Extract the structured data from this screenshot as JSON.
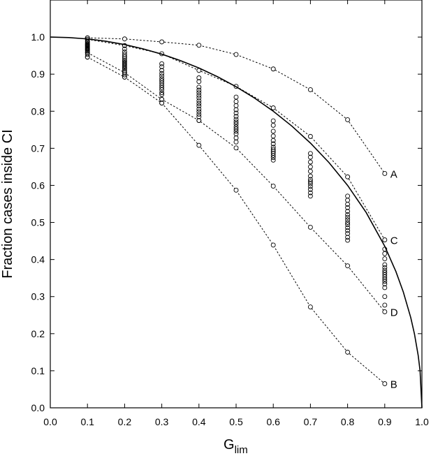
{
  "chart_data": {
    "type": "scatter",
    "xlabel": "G",
    "xlabel_subscript": "lim",
    "ylabel": "Fraction cases inside CI",
    "xlim": [
      0.0,
      1.0
    ],
    "ylim": [
      0.0,
      1.1
    ],
    "x_ticks": [
      0.0,
      0.1,
      0.2,
      0.3,
      0.4,
      0.5,
      0.6,
      0.7,
      0.8,
      0.9,
      1.0
    ],
    "x_tick_labels": [
      "0.0",
      "0.1",
      "0.2",
      "0.3",
      "0.4",
      "0.5",
      "0.6",
      "0.7",
      "0.8",
      "0.9",
      "1.0"
    ],
    "y_ticks": [
      0.0,
      0.1,
      0.2,
      0.3,
      0.4,
      0.5,
      0.6,
      0.7,
      0.8,
      0.9,
      1.0
    ],
    "y_tick_labels": [
      "0.0",
      "0.1",
      "0.2",
      "0.3",
      "0.4",
      "0.5",
      "0.6",
      "0.7",
      "0.8",
      "0.9",
      "1.0"
    ],
    "grid": false,
    "reference_curve": {
      "style": "solid",
      "x": [
        0.0,
        0.05,
        0.1,
        0.15,
        0.2,
        0.25,
        0.3,
        0.35,
        0.4,
        0.45,
        0.5,
        0.55,
        0.6,
        0.65,
        0.7,
        0.75,
        0.8,
        0.85,
        0.9,
        0.93,
        0.95,
        0.97,
        0.98,
        0.99,
        0.995,
        1.0
      ],
      "y": [
        1.0,
        0.9987,
        0.995,
        0.9887,
        0.9798,
        0.9682,
        0.9539,
        0.9367,
        0.9165,
        0.893,
        0.866,
        0.8352,
        0.8,
        0.7599,
        0.7141,
        0.6614,
        0.6,
        0.5268,
        0.4359,
        0.3676,
        0.3122,
        0.2431,
        0.199,
        0.1411,
        0.0999,
        0.0
      ]
    },
    "scatter_points": [
      {
        "x": 0.1,
        "y": [
          0.998,
          0.994,
          0.99,
          0.987,
          0.984,
          0.981,
          0.979,
          0.977,
          0.975,
          0.973,
          0.971,
          0.969,
          0.967,
          0.965,
          0.962,
          0.958,
          0.953,
          0.946
        ]
      },
      {
        "x": 0.2,
        "y": [
          0.977,
          0.968,
          0.96,
          0.954,
          0.948,
          0.943,
          0.938,
          0.934,
          0.93,
          0.926,
          0.922,
          0.918,
          0.914,
          0.909,
          0.904,
          0.898,
          0.892
        ]
      },
      {
        "x": 0.3,
        "y": [
          0.928,
          0.92,
          0.91,
          0.902,
          0.895,
          0.888,
          0.882,
          0.876,
          0.87,
          0.864,
          0.858,
          0.85,
          0.845,
          0.832,
          0.822
        ]
      },
      {
        "x": 0.4,
        "y": [
          0.89,
          0.88,
          0.865,
          0.857,
          0.85,
          0.843,
          0.836,
          0.828,
          0.821,
          0.814,
          0.806,
          0.799,
          0.792,
          0.785,
          0.775
        ]
      },
      {
        "x": 0.5,
        "y": [
          0.838,
          0.826,
          0.815,
          0.804,
          0.795,
          0.786,
          0.778,
          0.771,
          0.765,
          0.758,
          0.752,
          0.746,
          0.739,
          0.728,
          0.717
        ]
      },
      {
        "x": 0.6,
        "y": [
          0.774,
          0.762,
          0.746,
          0.733,
          0.721,
          0.712,
          0.703,
          0.697,
          0.692,
          0.687,
          0.681,
          0.675,
          0.668
        ]
      },
      {
        "x": 0.7,
        "y": [
          0.686,
          0.676,
          0.663,
          0.65,
          0.638,
          0.625,
          0.616,
          0.61,
          0.604,
          0.597,
          0.589,
          0.58,
          0.571
        ]
      },
      {
        "x": 0.8,
        "y": [
          0.571,
          0.56,
          0.549,
          0.54,
          0.53,
          0.521,
          0.514,
          0.507,
          0.5,
          0.494,
          0.486,
          0.478,
          0.47,
          0.46,
          0.452
        ]
      },
      {
        "x": 0.9,
        "y": [
          0.428,
          0.416,
          0.402,
          0.386,
          0.378,
          0.371,
          0.365,
          0.359,
          0.353,
          0.347,
          0.341,
          0.334,
          0.324,
          0.3,
          0.277
        ]
      }
    ],
    "series": [
      {
        "name": "A",
        "style": "dotted",
        "x": [
          0.1,
          0.2,
          0.3,
          0.4,
          0.5,
          0.6,
          0.7,
          0.8,
          0.9
        ],
        "y": [
          0.998,
          0.995,
          0.987,
          0.978,
          0.953,
          0.914,
          0.858,
          0.777,
          0.632
        ]
      },
      {
        "name": "C",
        "style": "dotted",
        "x": [
          0.1,
          0.2,
          0.3,
          0.4,
          0.5,
          0.6,
          0.7,
          0.8,
          0.9
        ],
        "y": [
          0.994,
          0.977,
          0.955,
          0.91,
          0.867,
          0.809,
          0.732,
          0.623,
          0.453
        ]
      },
      {
        "name": "D",
        "style": "dotted",
        "x": [
          0.1,
          0.2,
          0.3,
          0.4,
          0.5,
          0.6,
          0.7,
          0.8,
          0.9
        ],
        "y": [
          0.958,
          0.904,
          0.832,
          0.775,
          0.701,
          0.598,
          0.487,
          0.383,
          0.259
        ]
      },
      {
        "name": "B",
        "style": "dotted",
        "x": [
          0.1,
          0.2,
          0.3,
          0.4,
          0.5,
          0.6,
          0.7,
          0.8,
          0.9
        ],
        "y": [
          0.946,
          0.892,
          0.822,
          0.708,
          0.587,
          0.439,
          0.272,
          0.15,
          0.065
        ]
      }
    ]
  }
}
